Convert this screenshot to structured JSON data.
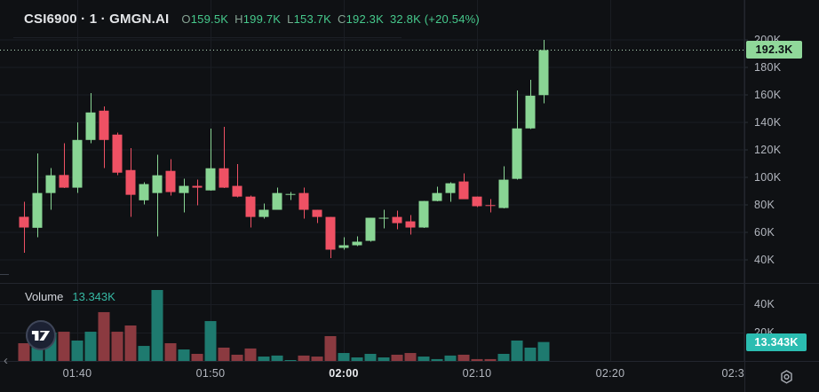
{
  "header": {
    "title": "CSI6900 · 1 · GMGN.AI",
    "symbol": "CSI6900",
    "interval": "1",
    "provider": "GMGN.AI",
    "ohlc": [
      {
        "key": "O",
        "value": "159.5K"
      },
      {
        "key": "H",
        "value": "199.7K"
      },
      {
        "key": "L",
        "value": "153.7K"
      },
      {
        "key": "C",
        "value": "192.3K"
      }
    ],
    "change_volume": "32.8K",
    "change_percent": "(+20.54%)"
  },
  "volume_pane": {
    "label": "Volume",
    "value": "13.343K"
  },
  "price_axis": {
    "tick_labels": [
      "200K",
      "180K",
      "160K",
      "140K",
      "120K",
      "100K",
      "80K",
      "60K",
      "40K"
    ],
    "tick_values": [
      200,
      180,
      160,
      140,
      120,
      100,
      80,
      60,
      40
    ],
    "last_price_label": "192.3K",
    "last_price_value": 192.3
  },
  "volume_axis": {
    "tick_labels": [
      "40K",
      "20K"
    ],
    "tick_values": [
      40,
      20
    ],
    "last_volume_label": "13.343K",
    "last_volume_value": 13.343
  },
  "time_axis": {
    "ticks": [
      {
        "label": "01:40",
        "index": 4,
        "bold": false,
        "clipped": false
      },
      {
        "label": "01:50",
        "index": 14,
        "bold": false,
        "clipped": false
      },
      {
        "label": "02:00",
        "index": 24,
        "bold": true,
        "clipped": false
      },
      {
        "label": "02:10",
        "index": 34,
        "bold": false,
        "clipped": false
      },
      {
        "label": "02:20",
        "index": 44,
        "bold": false,
        "clipped": false
      },
      {
        "label": "02:3",
        "index": 54,
        "bold": false,
        "clipped": true
      }
    ]
  },
  "chart_data": {
    "type": "candlestick_with_volume",
    "x_unit": "minute",
    "price_unit": "K",
    "ylim": [
      40,
      200
    ],
    "volume_ylim": [
      0,
      53
    ],
    "grid": true,
    "candles": [
      {
        "t": "01:36",
        "o": 71,
        "h": 82,
        "l": 45,
        "c": 63.2,
        "v": 12.5
      },
      {
        "t": "01:37",
        "o": 63,
        "h": 117,
        "l": 56,
        "c": 88.3,
        "v": 14
      },
      {
        "t": "01:38",
        "o": 88.3,
        "h": 106.3,
        "l": 76,
        "c": 101.2,
        "v": 20
      },
      {
        "t": "01:39",
        "o": 101.4,
        "h": 124.4,
        "l": 92,
        "c": 92.2,
        "v": 20.6
      },
      {
        "t": "01:40",
        "o": 92.2,
        "h": 139.8,
        "l": 88.3,
        "c": 126.9,
        "v": 14.4
      },
      {
        "t": "01:41",
        "o": 126.9,
        "h": 161.1,
        "l": 124.4,
        "c": 146.9,
        "v": 20.6
      },
      {
        "t": "01:42",
        "o": 148.2,
        "h": 151.4,
        "l": 106.3,
        "c": 126.9,
        "v": 34.4
      },
      {
        "t": "01:43",
        "o": 130.8,
        "h": 132.1,
        "l": 101.2,
        "c": 103.1,
        "v": 20.6
      },
      {
        "t": "01:44",
        "o": 105,
        "h": 121.1,
        "l": 71,
        "c": 87,
        "v": 25
      },
      {
        "t": "01:45",
        "o": 83,
        "h": 96,
        "l": 80,
        "c": 94.8,
        "v": 10.6
      },
      {
        "t": "01:46",
        "o": 88.3,
        "h": 116,
        "l": 56.8,
        "c": 101.2,
        "v": 50
      },
      {
        "t": "01:47",
        "o": 104.4,
        "h": 112.8,
        "l": 86.4,
        "c": 89,
        "v": 12.5
      },
      {
        "t": "01:48",
        "o": 88.3,
        "h": 98.6,
        "l": 74.1,
        "c": 93.5,
        "v": 8.1
      },
      {
        "t": "01:49",
        "o": 93.5,
        "h": 98,
        "l": 79.3,
        "c": 92.2,
        "v": 5
      },
      {
        "t": "01:50",
        "o": 90.2,
        "h": 135.3,
        "l": 90,
        "c": 106.3,
        "v": 28.1
      },
      {
        "t": "01:51",
        "o": 106.3,
        "h": 136.6,
        "l": 92,
        "c": 92.2,
        "v": 9.4
      },
      {
        "t": "01:52",
        "o": 93.5,
        "h": 109.5,
        "l": 85.1,
        "c": 85.7,
        "v": 4.4
      },
      {
        "t": "01:53",
        "o": 85.7,
        "h": 86.4,
        "l": 63.2,
        "c": 70.9,
        "v": 8.8
      },
      {
        "t": "01:54",
        "o": 70.9,
        "h": 80.6,
        "l": 69.6,
        "c": 76.1,
        "v": 3.1
      },
      {
        "t": "01:55",
        "o": 76.1,
        "h": 92.2,
        "l": 76,
        "c": 88.3,
        "v": 3.8
      },
      {
        "t": "01:56",
        "o": 87,
        "h": 89,
        "l": 83.2,
        "c": 87.6,
        "v": 0.6
      },
      {
        "t": "01:57",
        "o": 88.3,
        "h": 92.2,
        "l": 69.6,
        "c": 76.1,
        "v": 3.8
      },
      {
        "t": "01:58",
        "o": 76.1,
        "h": 76.1,
        "l": 66.4,
        "c": 70.9,
        "v": 3.1
      },
      {
        "t": "01:59",
        "o": 70.9,
        "h": 70.9,
        "l": 41,
        "c": 47.1,
        "v": 17.5
      },
      {
        "t": "02:00",
        "o": 48.4,
        "h": 56.1,
        "l": 47.1,
        "c": 50.3,
        "v": 5.6
      },
      {
        "t": "02:01",
        "o": 50.3,
        "h": 56.8,
        "l": 49.7,
        "c": 52.9,
        "v": 2.5
      },
      {
        "t": "02:02",
        "o": 53.5,
        "h": 70.3,
        "l": 53,
        "c": 70.3,
        "v": 5
      },
      {
        "t": "02:03",
        "o": 70,
        "h": 76.1,
        "l": 62.6,
        "c": 70.3,
        "v": 2.5
      },
      {
        "t": "02:04",
        "o": 70.9,
        "h": 75.4,
        "l": 61.9,
        "c": 66.4,
        "v": 4.4
      },
      {
        "t": "02:05",
        "o": 67.7,
        "h": 72.2,
        "l": 58,
        "c": 63.2,
        "v": 5.6
      },
      {
        "t": "02:06",
        "o": 63.2,
        "h": 82.5,
        "l": 63,
        "c": 82.5,
        "v": 3.1
      },
      {
        "t": "02:07",
        "o": 82.5,
        "h": 93,
        "l": 82.3,
        "c": 88.3,
        "v": 1.3
      },
      {
        "t": "02:08",
        "o": 88.3,
        "h": 96,
        "l": 81.9,
        "c": 95.4,
        "v": 3.8
      },
      {
        "t": "02:09",
        "o": 96.7,
        "h": 102.5,
        "l": 83.8,
        "c": 83.8,
        "v": 4.4
      },
      {
        "t": "02:10",
        "o": 85.7,
        "h": 85.7,
        "l": 78,
        "c": 78.7,
        "v": 1.3
      },
      {
        "t": "02:11",
        "o": 79.5,
        "h": 83.8,
        "l": 74.1,
        "c": 79,
        "v": 1.3
      },
      {
        "t": "02:12",
        "o": 77.4,
        "h": 107.6,
        "l": 77,
        "c": 98,
        "v": 5
      },
      {
        "t": "02:13",
        "o": 98.6,
        "h": 163,
        "l": 98,
        "c": 135.3,
        "v": 14.4
      },
      {
        "t": "02:14",
        "o": 135.3,
        "h": 170.7,
        "l": 135,
        "c": 159.1,
        "v": 9.4
      },
      {
        "t": "02:15",
        "o": 159.5,
        "h": 199.7,
        "l": 153.7,
        "c": 192.3,
        "v": 13.343
      }
    ]
  },
  "colors": {
    "up": "#89d594",
    "down": "#ef5164",
    "vol_up": "#1e7a6f",
    "vol_down": "#8b3a40",
    "grid": "#1a1d23",
    "border": "#23262e",
    "price_line": "#b9dfc0",
    "price_badge_bg": "#90d89a",
    "volume_badge_bg": "#2bbdb1"
  },
  "icons": {
    "tv_logo": "tradingview-logo",
    "gear": "time-axis-settings",
    "scroll_left": "‹"
  }
}
